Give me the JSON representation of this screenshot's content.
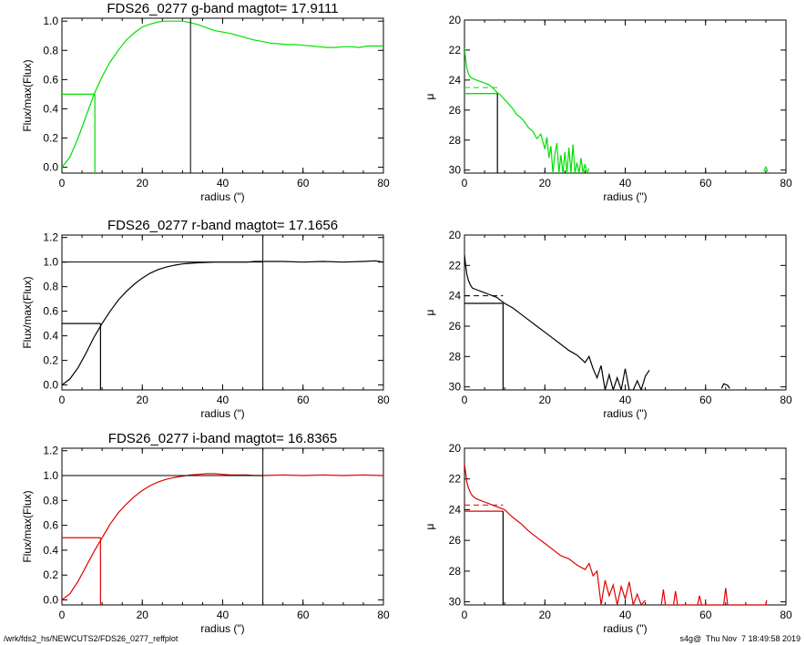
{
  "chart_data": [
    {
      "type": "line",
      "title": "FDS26_0277 g-band  magtot=      17.9111",
      "xlabel": "radius (\")",
      "ylabel": "Flux/max(Flux)",
      "xlim": [
        0,
        80
      ],
      "ylim": [
        -0.04,
        1.02
      ],
      "xticks": [
        "0",
        "20",
        "40",
        "60",
        "80"
      ],
      "yticks": [
        "0.0",
        "0.2",
        "0.4",
        "0.6",
        "0.8",
        "1.0"
      ],
      "color": "#00e000",
      "series": [
        {
          "x": [
            0,
            2,
            4,
            6,
            8,
            10,
            12,
            14,
            16,
            18,
            20,
            22,
            24,
            26,
            28,
            30,
            32,
            34,
            36,
            38,
            40,
            42,
            44,
            46,
            48,
            50,
            52,
            54,
            56,
            58,
            60,
            62,
            64,
            66,
            68,
            70,
            72,
            74,
            76,
            78,
            80
          ],
          "y": [
            0.0,
            0.07,
            0.2,
            0.35,
            0.5,
            0.62,
            0.72,
            0.8,
            0.87,
            0.92,
            0.96,
            0.98,
            0.995,
            1.0,
            1.0,
            1.0,
            0.99,
            0.975,
            0.955,
            0.935,
            0.925,
            0.915,
            0.9,
            0.885,
            0.87,
            0.86,
            0.85,
            0.845,
            0.84,
            0.84,
            0.835,
            0.83,
            0.825,
            0.82,
            0.82,
            0.825,
            0.825,
            0.82,
            0.83,
            0.83,
            0.83
          ]
        }
      ],
      "guides": {
        "half_radius": 8.2,
        "half_level": 0.5,
        "total_radius": 32,
        "total_level": 1.0
      }
    },
    {
      "type": "line",
      "title": "FDS26_0277 r-band  magtot=      17.1656",
      "xlabel": "radius (\")",
      "ylabel": "Flux/max(Flux)",
      "xlim": [
        0,
        80
      ],
      "ylim": [
        -0.04,
        1.22
      ],
      "xticks": [
        "0",
        "20",
        "40",
        "60",
        "80"
      ],
      "yticks": [
        "0.0",
        "0.2",
        "0.4",
        "0.6",
        "0.8",
        "1.0",
        "1.2"
      ],
      "color": "#000000",
      "series": [
        {
          "x": [
            0,
            2,
            4,
            6,
            8,
            10,
            12,
            14,
            16,
            18,
            20,
            22,
            24,
            26,
            28,
            30,
            32,
            34,
            36,
            38,
            40,
            42,
            44,
            46,
            48,
            50,
            55,
            60,
            65,
            70,
            75,
            78,
            80
          ],
          "y": [
            0.0,
            0.05,
            0.14,
            0.26,
            0.39,
            0.5,
            0.6,
            0.69,
            0.76,
            0.82,
            0.87,
            0.91,
            0.94,
            0.96,
            0.975,
            0.985,
            0.99,
            0.995,
            0.998,
            1.0,
            1.0,
            1.0,
            1.0,
            1.0,
            1.005,
            1.005,
            1.005,
            1.0,
            1.005,
            1.0,
            1.005,
            1.01,
            1.0
          ]
        }
      ],
      "guides": {
        "half_radius": 9.6,
        "half_level": 0.5,
        "total_radius": 50,
        "total_level": 1.0
      }
    },
    {
      "type": "line",
      "title": "FDS26_0277 i-band  magtot=      16.8365",
      "xlabel": "radius (\")",
      "ylabel": "Flux/max(Flux)",
      "xlim": [
        0,
        80
      ],
      "ylim": [
        -0.04,
        1.22
      ],
      "xticks": [
        "0",
        "20",
        "40",
        "60",
        "80"
      ],
      "yticks": [
        "0.0",
        "0.2",
        "0.4",
        "0.6",
        "0.8",
        "1.0",
        "1.2"
      ],
      "color": "#e00000",
      "series": [
        {
          "x": [
            0,
            2,
            4,
            6,
            8,
            10,
            12,
            14,
            16,
            18,
            20,
            22,
            24,
            26,
            28,
            30,
            32,
            34,
            36,
            38,
            40,
            42,
            44,
            46,
            48,
            50,
            55,
            60,
            65,
            70,
            75,
            80
          ],
          "y": [
            0.0,
            0.05,
            0.15,
            0.27,
            0.39,
            0.5,
            0.61,
            0.7,
            0.77,
            0.83,
            0.88,
            0.92,
            0.95,
            0.97,
            0.985,
            0.995,
            1.005,
            1.01,
            1.015,
            1.015,
            1.01,
            1.005,
            1.005,
            1.005,
            1.0,
            1.0,
            1.005,
            1.0,
            1.005,
            1.0,
            1.005,
            1.0
          ]
        }
      ],
      "guides": {
        "half_radius": 9.6,
        "half_level": 0.5,
        "total_radius": 50,
        "total_level": 1.0
      }
    },
    {
      "type": "line",
      "xlabel": "radius (\")",
      "ylabel": "μ",
      "xlim": [
        0,
        80
      ],
      "ylim": [
        30.2,
        20
      ],
      "y_inverted": true,
      "xticks": [
        "0",
        "20",
        "40",
        "60",
        "80"
      ],
      "yticks": [
        "20",
        "22",
        "24",
        "26",
        "28",
        "30"
      ],
      "color": "#00e000",
      "series": [
        {
          "x": [
            0,
            0.3,
            0.6,
            1,
            1.5,
            2,
            3,
            4,
            5,
            6,
            7,
            8,
            9,
            10,
            11,
            12,
            13,
            14,
            15,
            16,
            17,
            18,
            19,
            20,
            20.5,
            21,
            21.5,
            22,
            22.5,
            23,
            23.5,
            24,
            24.5,
            25,
            25.5,
            26,
            26.5,
            27,
            27.5,
            28,
            28.5,
            29,
            29.5,
            30,
            30.5,
            31
          ],
          "y": [
            21.9,
            22.6,
            23.2,
            23.6,
            23.8,
            23.9,
            24.0,
            24.1,
            24.2,
            24.3,
            24.5,
            24.8,
            25.0,
            25.3,
            25.6,
            25.9,
            26.3,
            26.5,
            26.8,
            27.2,
            27.4,
            27.9,
            27.6,
            28.6,
            27.8,
            29.2,
            28.4,
            30.2,
            28.9,
            28.2,
            30.2,
            29.0,
            30.2,
            28.8,
            30.2,
            28.5,
            30.2,
            28.3,
            30.2,
            29.5,
            30.2,
            29.2,
            30.2,
            29.6,
            30.2,
            29.9
          ]
        },
        {
          "x": [
            74.5,
            75,
            75.5
          ],
          "y": [
            30.1,
            29.8,
            30.1
          ]
        }
      ],
      "guides": {
        "half_radius": 8.2,
        "half_level": 24.9,
        "total_level": 24.5
      }
    },
    {
      "type": "line",
      "xlabel": "radius (\")",
      "ylabel": "μ",
      "xlim": [
        0,
        80
      ],
      "ylim": [
        30.2,
        20
      ],
      "y_inverted": true,
      "xticks": [
        "0",
        "20",
        "40",
        "60",
        "80"
      ],
      "yticks": [
        "20",
        "22",
        "24",
        "26",
        "28",
        "30"
      ],
      "color": "#000000",
      "series": [
        {
          "x": [
            0,
            0.3,
            0.6,
            1,
            1.5,
            2,
            3,
            4,
            5,
            6,
            7,
            8,
            9,
            10,
            12,
            14,
            16,
            18,
            20,
            22,
            24,
            26,
            28,
            30,
            31,
            32,
            33,
            34,
            35,
            36,
            37,
            38,
            39,
            40,
            41,
            42,
            43,
            44,
            45,
            46
          ],
          "y": [
            21.3,
            22.0,
            22.6,
            23.0,
            23.3,
            23.5,
            23.6,
            23.7,
            23.8,
            23.9,
            24.0,
            24.1,
            24.3,
            24.5,
            24.8,
            25.2,
            25.6,
            26.0,
            26.4,
            26.8,
            27.2,
            27.6,
            27.9,
            28.4,
            28.0,
            28.8,
            29.4,
            28.6,
            30.2,
            29.2,
            30.2,
            29.4,
            30.2,
            28.8,
            30.2,
            30.2,
            29.6,
            30.2,
            29.3,
            28.9
          ]
        },
        {
          "x": [
            64,
            64.5,
            65.5,
            66
          ],
          "y": [
            30.1,
            29.8,
            29.9,
            30.1
          ]
        }
      ],
      "guides": {
        "half_radius": 9.6,
        "half_level": 24.5,
        "total_level": 24.0
      }
    },
    {
      "type": "line",
      "xlabel": "radius (\")",
      "ylabel": "μ",
      "xlim": [
        0,
        80
      ],
      "ylim": [
        30.2,
        20
      ],
      "y_inverted": true,
      "xticks": [
        "0",
        "20",
        "40",
        "60",
        "80"
      ],
      "yticks": [
        "20",
        "22",
        "24",
        "26",
        "28",
        "30"
      ],
      "color": "#e00000",
      "series": [
        {
          "x": [
            0,
            0.3,
            0.6,
            1,
            1.5,
            2,
            3,
            4,
            5,
            6,
            7,
            8,
            9,
            10,
            12,
            14,
            16,
            18,
            20,
            22,
            24,
            26,
            28,
            30,
            31,
            32,
            33,
            34,
            35,
            36,
            37,
            38,
            39,
            40,
            41,
            42,
            43,
            44,
            45
          ],
          "y": [
            21.0,
            21.6,
            22.2,
            22.6,
            22.9,
            23.1,
            23.3,
            23.4,
            23.5,
            23.6,
            23.7,
            23.8,
            23.9,
            24.0,
            24.5,
            24.9,
            25.4,
            25.8,
            26.2,
            26.6,
            27.0,
            27.2,
            27.6,
            27.9,
            27.5,
            28.3,
            28.0,
            30.2,
            28.6,
            29.6,
            28.9,
            30.2,
            29.0,
            29.8,
            28.7,
            30.2,
            29.5,
            30.2,
            29.9
          ]
        },
        {
          "x": [
            49,
            49.5,
            50,
            52,
            52.5,
            53,
            58,
            58.5,
            59,
            64.5,
            65,
            65.5,
            75,
            75.2
          ],
          "y": [
            30.2,
            29.2,
            30.2,
            30.2,
            29.3,
            30.2,
            30.2,
            29.6,
            30.2,
            30.2,
            29.1,
            30.2,
            30.2,
            29.9
          ]
        }
      ],
      "guides": {
        "half_radius": 9.6,
        "half_level": 24.1,
        "total_level": 23.7
      }
    }
  ],
  "footer": {
    "path": "/wrk/fds2_hs/NEWCUTS2/FDS26_0277_reffplot",
    "stamp": "s4g@  Thu Nov  7 18:49:58 2019"
  }
}
